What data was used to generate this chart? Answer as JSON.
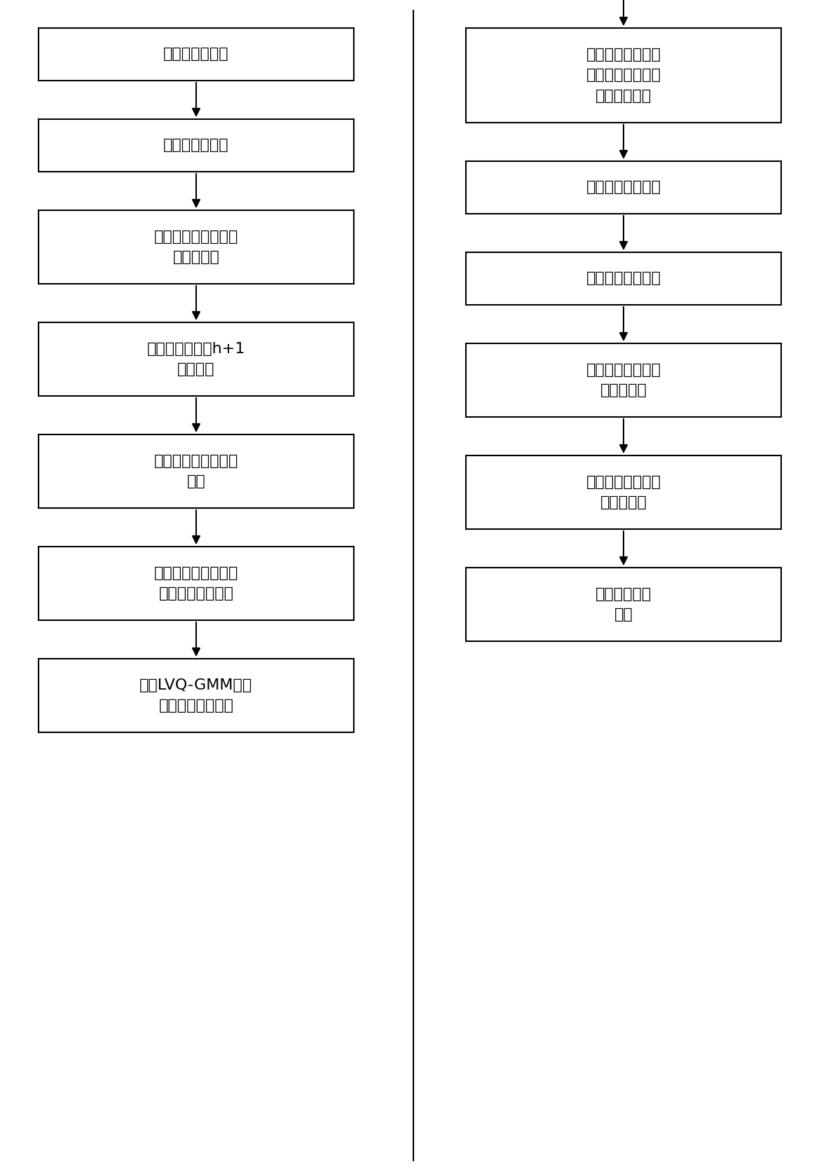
{
  "bg_color": "#ffffff",
  "box_color": "#ffffff",
  "box_edge_color": "#000000",
  "arrow_color": "#000000",
  "text_color": "#000000",
  "left_boxes": [
    {
      "text": "获取红外视频流",
      "lines": 1
    },
    {
      "text": "选取温度峰值点",
      "lines": 1
    },
    {
      "text": "利用峰值点位置计算\n变换行步长",
      "lines": 2
    },
    {
      "text": "将视频流划分为h+1\n个数据块",
      "lines": 2
    },
    {
      "text": "计算数据块内变换行\n步长",
      "lines": 2
    },
    {
      "text": "使用变换行、列步长\n对温度点进行采样",
      "lines": 2
    },
    {
      "text": "使用LVQ-GMM对采\n样数据集进行分类",
      "lines": 2
    }
  ],
  "right_boxes": [
    {
      "text": "在分类数据集中选\n择代表瞬态热响应\n构成变换矩阵",
      "lines": 3
    },
    {
      "text": "获得红外重构图像",
      "lines": 1
    },
    {
      "text": "构建优化目标函数",
      "lines": 1
    },
    {
      "text": "基于多目标优化的\n权衡解学习",
      "lines": 2
    },
    {
      "text": "基于多目标优化的\n全像素分割",
      "lines": 2
    },
    {
      "text": "获得缺陷分割\n图像",
      "lines": 2
    }
  ]
}
